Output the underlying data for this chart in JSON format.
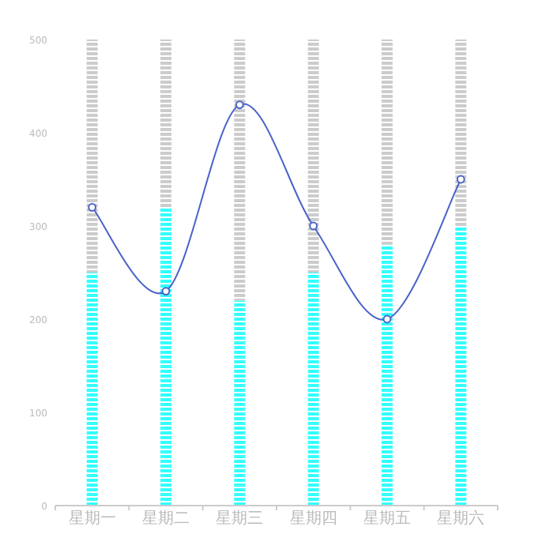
{
  "chart_data": {
    "type": "bar",
    "stacked": true,
    "categories": [
      "星期一",
      "星期二",
      "星期三",
      "星期四",
      "星期五",
      "星期六"
    ],
    "series": [
      {
        "color": "#33ffff",
        "values": [
          250,
          320,
          220,
          250,
          280,
          300
        ]
      },
      {
        "color": "#cccccc",
        "values": [
          250,
          180,
          280,
          250,
          220,
          200
        ]
      },
      {
        "type": "line",
        "color": "#4a63c8",
        "marker": "circle",
        "values": [
          320,
          230,
          430,
          300,
          200,
          350
        ]
      }
    ],
    "ylim": [
      0,
      500
    ],
    "yticks": [
      0,
      100,
      200,
      300,
      400,
      500
    ],
    "grid": false
  }
}
